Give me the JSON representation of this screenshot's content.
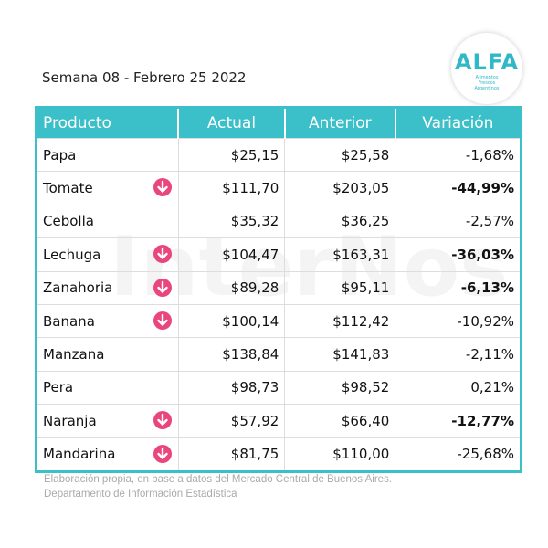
{
  "header": {
    "subtitle": "Semana 08 - Febrero 25 2022",
    "logo": {
      "name": "ALFA",
      "tagline": "Alimentos Frescos Argentinos"
    }
  },
  "watermark": "InterNos",
  "table": {
    "columns": [
      "Producto",
      "Actual",
      "Anterior",
      "Variación"
    ],
    "rows": [
      [
        "Papa",
        "$25,15",
        "$25,58",
        "-1,68%"
      ],
      [
        "Tomate",
        "$111,70",
        "$203,05",
        "-44,99%"
      ],
      [
        "Cebolla",
        "$35,32",
        "$36,25",
        "-2,57%"
      ],
      [
        "Lechuga",
        "$104,47",
        "$163,31",
        "-36,03%"
      ],
      [
        "Zanahoria",
        "$89,28",
        "$95,11",
        "-6,13%"
      ],
      [
        "Banana",
        "$100,14",
        "$112,42",
        "-10,92%"
      ],
      [
        "Manzana",
        "$138,84",
        "$141,83",
        "-2,11%"
      ],
      [
        "Pera",
        "$98,73",
        "$98,52",
        "0,21%"
      ],
      [
        "Naranja",
        "$57,92",
        "$66,40",
        "-12,77%"
      ],
      [
        "Mandarina",
        "$81,75",
        "$110,00",
        "-25,68%"
      ]
    ]
  },
  "footer": [
    "Elaboración propia, en base a datos del Mercado Central de Buenos Aires.",
    "Departamento de Información Estadística"
  ]
}
